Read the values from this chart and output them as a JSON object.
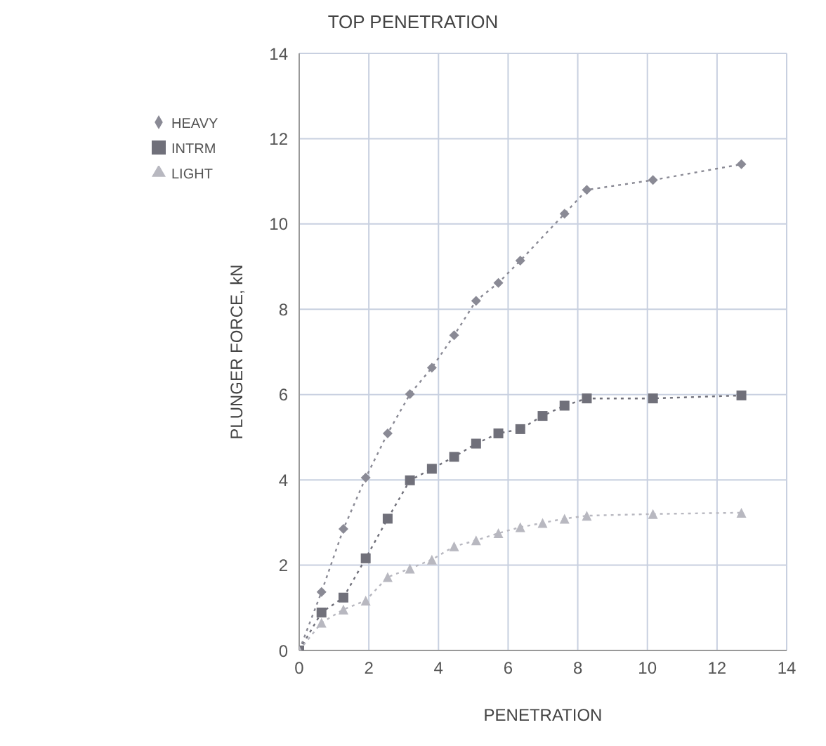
{
  "chart_data": {
    "type": "line",
    "title": "TOP PENETRATION",
    "xlabel": "PENETRATION",
    "ylabel": "PLUNGER FORCE, kN",
    "xlim": [
      0,
      14
    ],
    "xticks": [
      0,
      2,
      4,
      6,
      8,
      10,
      12,
      14
    ],
    "ylim": [
      0,
      14
    ],
    "yticks": [
      0,
      2,
      4,
      6,
      8,
      10,
      12,
      14
    ],
    "grid": true,
    "legend": "top left",
    "line_style": "dotted",
    "series": [
      {
        "name": "HEAVY",
        "color": "#8a8a95",
        "marker": "diamond",
        "x": [
          0,
          0.64,
          1.27,
          1.91,
          2.54,
          3.18,
          3.81,
          4.45,
          5.08,
          5.72,
          6.35,
          7.62,
          8.26,
          10.16,
          12.7
        ],
        "values": [
          0,
          1.37,
          2.85,
          4.05,
          5.09,
          6.01,
          6.63,
          7.39,
          8.2,
          8.62,
          9.14,
          10.24,
          10.8,
          11.03,
          11.4
        ]
      },
      {
        "name": "INTRM",
        "color": "#70707a",
        "marker": "square",
        "x": [
          0,
          0.64,
          1.27,
          1.91,
          2.54,
          3.18,
          3.81,
          4.45,
          5.08,
          5.72,
          6.35,
          6.99,
          7.62,
          8.26,
          10.16,
          12.7
        ],
        "values": [
          0,
          0.89,
          1.24,
          2.16,
          3.09,
          3.99,
          4.26,
          4.54,
          4.85,
          5.09,
          5.19,
          5.5,
          5.74,
          5.91,
          5.91,
          5.98
        ]
      },
      {
        "name": "LIGHT",
        "color": "#b8b8c0",
        "marker": "triangle",
        "x": [
          0,
          0.64,
          1.27,
          1.91,
          2.54,
          3.18,
          3.81,
          4.45,
          5.08,
          5.72,
          6.35,
          6.99,
          7.62,
          8.26,
          10.16,
          12.7
        ],
        "values": [
          0,
          0.65,
          0.96,
          1.17,
          1.72,
          1.92,
          2.13,
          2.44,
          2.58,
          2.75,
          2.89,
          2.99,
          3.09,
          3.16,
          3.2,
          3.23
        ]
      }
    ]
  }
}
